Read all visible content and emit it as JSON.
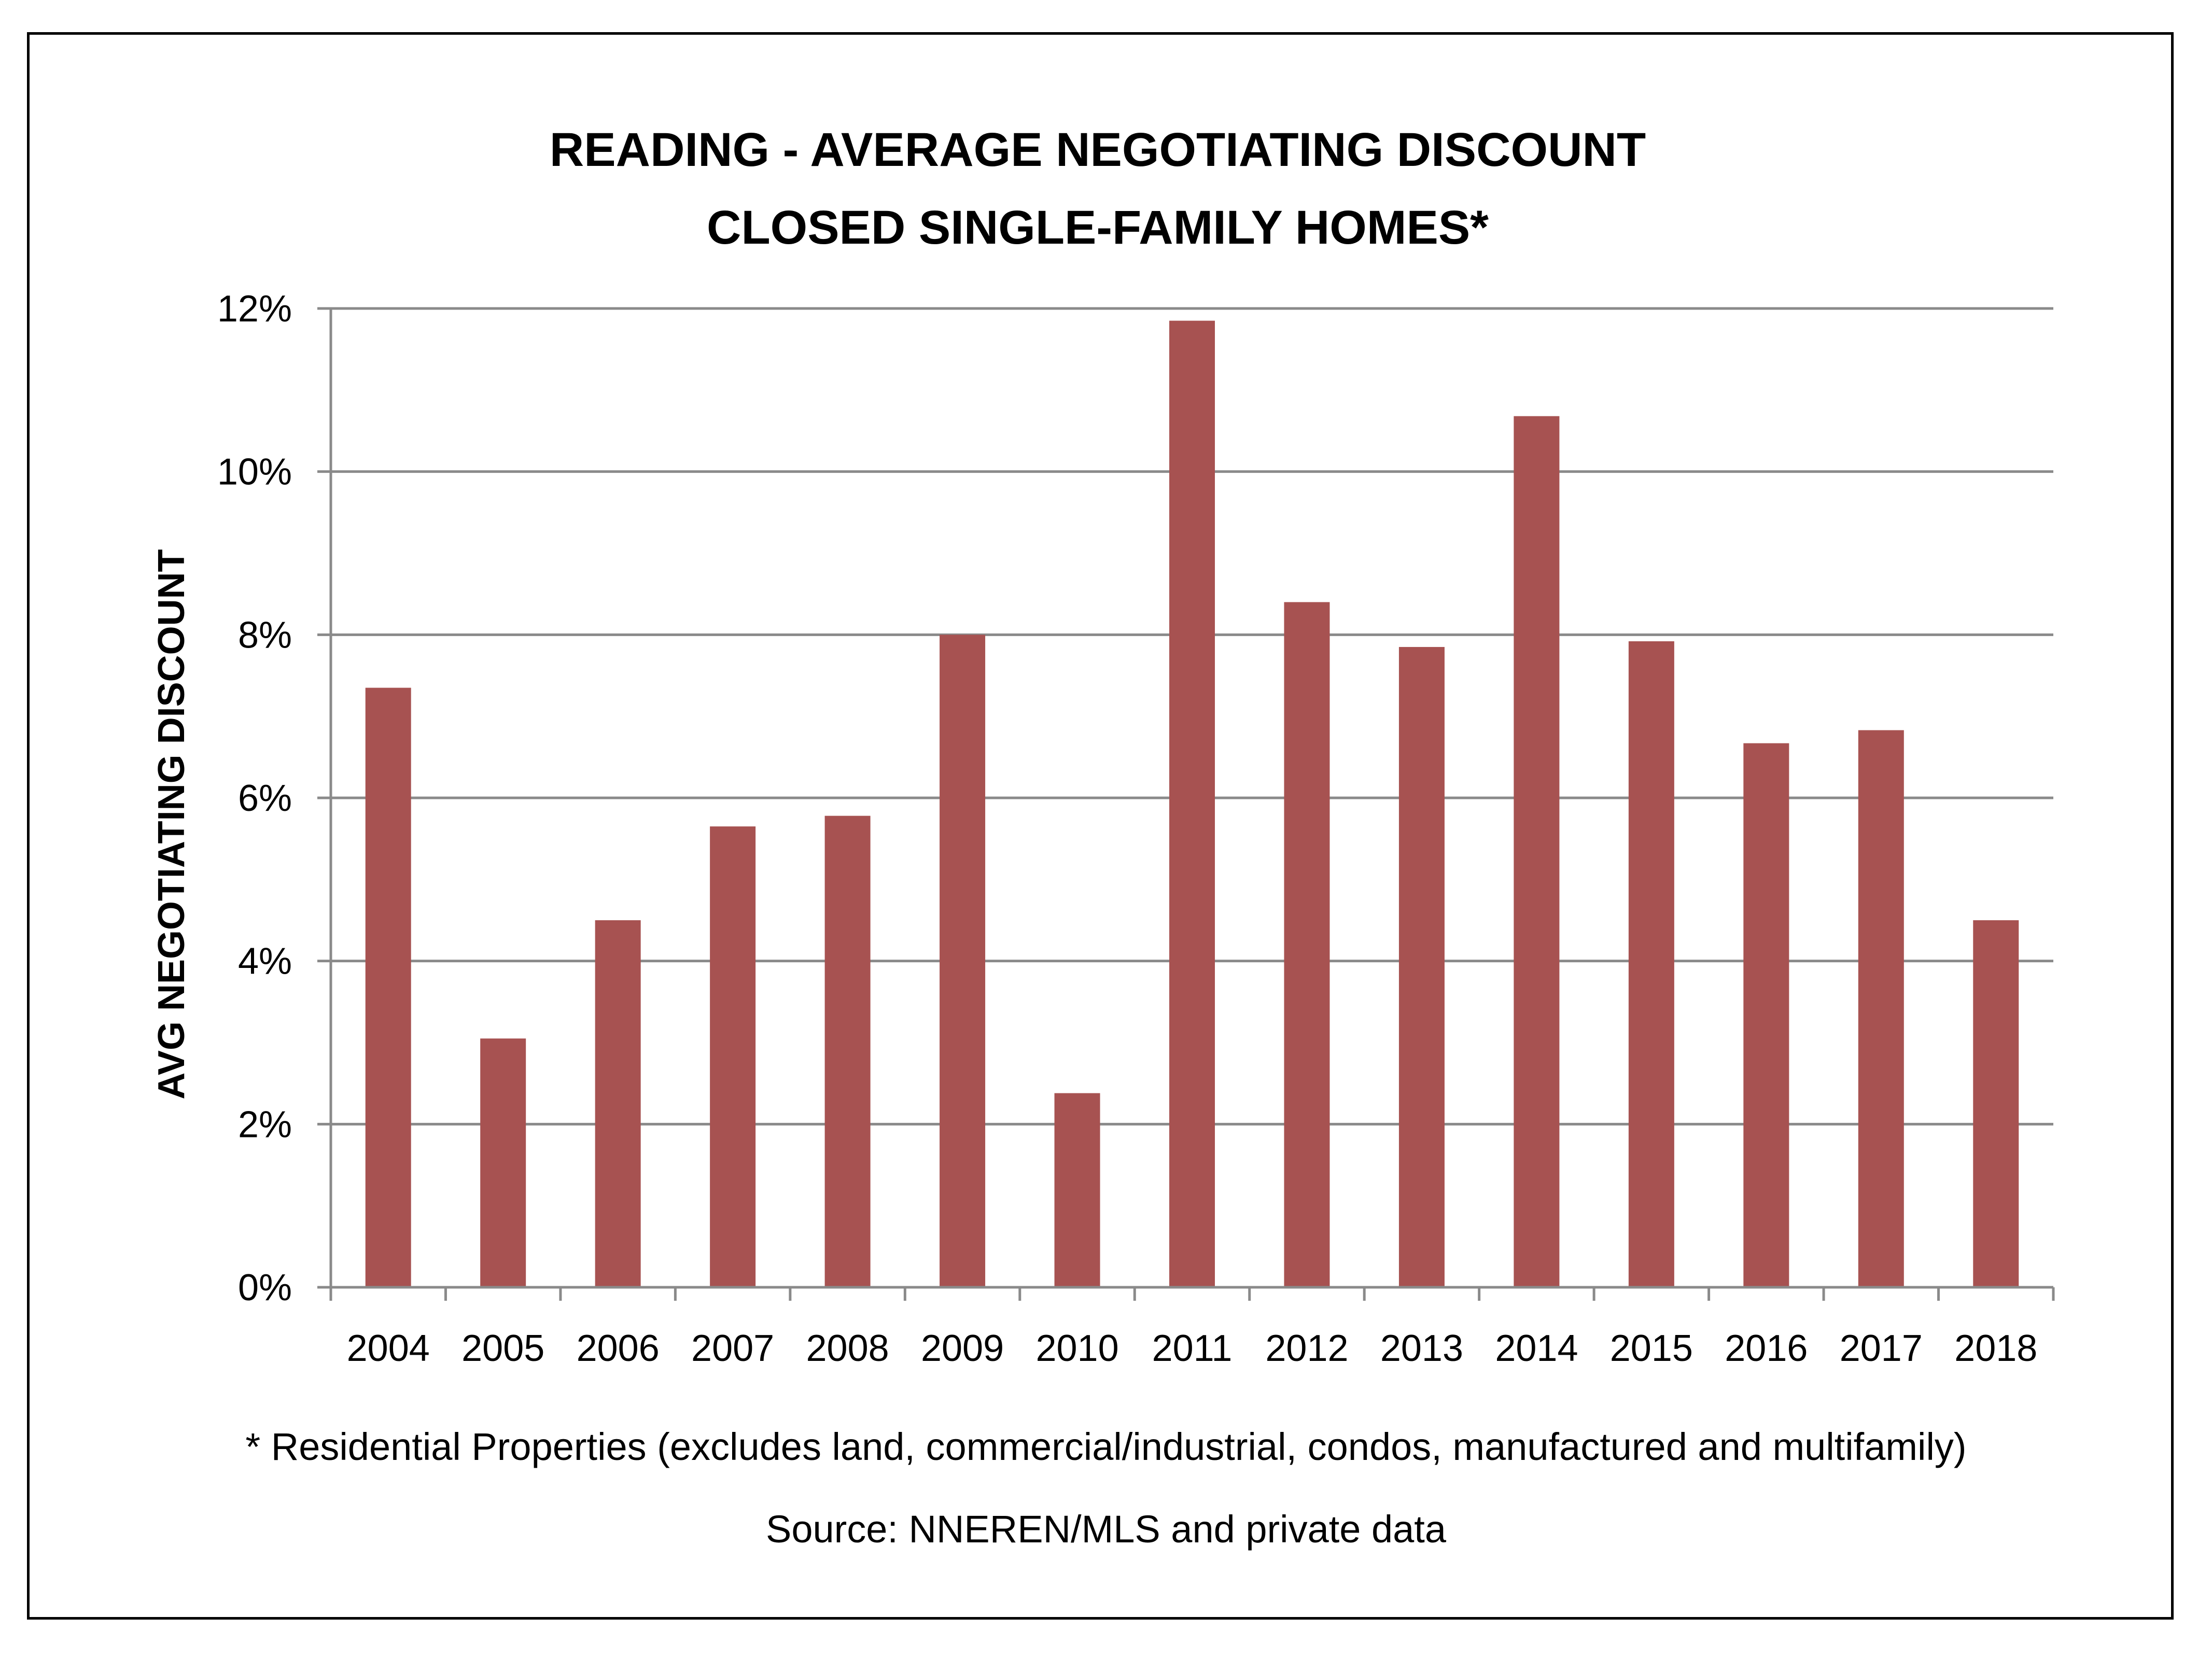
{
  "chart_data": {
    "type": "bar",
    "title": "READING - AVERAGE NEGOTIATING DISCOUNT",
    "subtitle": "CLOSED SINGLE-FAMILY HOMES*",
    "ylabel": "AVG NEGOTIATING DISCOUNT",
    "xlabel": "",
    "ylim": [
      0,
      12
    ],
    "y_unit": "%",
    "yticks": [
      "0%",
      "2%",
      "4%",
      "6%",
      "8%",
      "10%",
      "12%"
    ],
    "ytick_values": [
      0,
      2,
      4,
      6,
      8,
      10,
      12
    ],
    "categories": [
      "2004",
      "2005",
      "2006",
      "2007",
      "2008",
      "2009",
      "2010",
      "2011",
      "2012",
      "2013",
      "2014",
      "2015",
      "2016",
      "2017",
      "2018"
    ],
    "values": [
      7.35,
      3.05,
      4.5,
      5.65,
      5.78,
      8.0,
      2.38,
      11.85,
      8.4,
      7.85,
      10.68,
      7.92,
      6.67,
      6.83,
      4.5
    ],
    "bar_color": "#A75251",
    "grid": true,
    "legend": "none"
  },
  "footnote": "* Residential Properties (excludes land, commercial/industrial, condos, manufactured and multifamily)",
  "source": "Source: NNEREN/MLS and private data"
}
